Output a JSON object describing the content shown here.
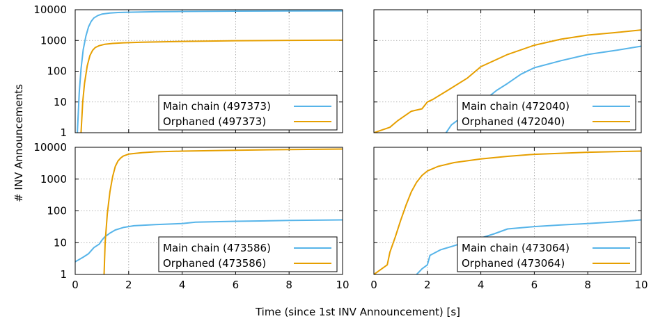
{
  "figure": {
    "ylabel": "# INV Announcements",
    "xlabel": "Time (since 1st INV Announcement) [s]"
  },
  "colors": {
    "main": "#56B4E9",
    "orphan": "#E69F00"
  },
  "chart_data": [
    {
      "type": "line",
      "xlim": [
        0,
        10
      ],
      "ylim": [
        1,
        10000
      ],
      "yscale": "log",
      "xticks": [
        "0",
        "2",
        "4",
        "6",
        "8",
        "10"
      ],
      "yticks": [
        "1",
        "10",
        "100",
        "1000",
        "10000"
      ],
      "grid": true,
      "legend": "bottom-right",
      "series": [
        {
          "name": "Main chain (497373)",
          "color": "main",
          "x": [
            0.08,
            0.15,
            0.22,
            0.3,
            0.4,
            0.5,
            0.6,
            0.7,
            0.85,
            1.0,
            1.3,
            1.6,
            2,
            3,
            4,
            6,
            8,
            10
          ],
          "y": [
            1,
            20,
            120,
            500,
            1400,
            2800,
            4200,
            5400,
            6500,
            7200,
            7800,
            8100,
            8300,
            8600,
            8800,
            9000,
            9100,
            9200
          ]
        },
        {
          "name": "Orphaned (497373)",
          "color": "orphan",
          "x": [
            0.22,
            0.28,
            0.35,
            0.45,
            0.55,
            0.65,
            0.75,
            0.9,
            1.1,
            1.4,
            1.8,
            2.5,
            4,
            6,
            8,
            10
          ],
          "y": [
            1,
            10,
            40,
            150,
            320,
            480,
            590,
            680,
            750,
            800,
            840,
            880,
            930,
            980,
            1010,
            1030
          ]
        }
      ]
    },
    {
      "type": "line",
      "xlim": [
        0,
        10
      ],
      "ylim": [
        1,
        10000
      ],
      "yscale": "log",
      "xticks": [
        "0",
        "2",
        "4",
        "6",
        "8",
        "10"
      ],
      "yticks": [
        "1",
        "10",
        "100",
        "1000",
        "10000"
      ],
      "grid": true,
      "legend": "bottom-right",
      "series": [
        {
          "name": "Main chain (472040)",
          "color": "main",
          "x": [
            2.7,
            2.9,
            3.2,
            3.6,
            3.9,
            4.3,
            4.6,
            5.0,
            5.5,
            6,
            7,
            8,
            9,
            10
          ],
          "y": [
            1,
            1.8,
            2.8,
            5,
            10,
            15,
            24,
            40,
            80,
            130,
            220,
            350,
            470,
            650
          ]
        },
        {
          "name": "Orphaned (472040)",
          "color": "orphan",
          "x": [
            0,
            0.6,
            0.9,
            1.4,
            1.8,
            2.0,
            2.2,
            2.8,
            3.5,
            4.0,
            5.0,
            6.0,
            7.0,
            8.0,
            9.0,
            10
          ],
          "y": [
            1,
            1.5,
            2.5,
            5,
            6,
            10,
            12,
            25,
            60,
            140,
            350,
            700,
            1100,
            1500,
            1800,
            2200
          ]
        }
      ]
    },
    {
      "type": "line",
      "xlim": [
        0,
        10
      ],
      "ylim": [
        1,
        10000
      ],
      "yscale": "log",
      "xticks": [
        "0",
        "2",
        "4",
        "6",
        "8",
        "10"
      ],
      "yticks": [
        "1",
        "10",
        "100",
        "1000",
        "10000"
      ],
      "grid": true,
      "legend": "bottom-right",
      "series": [
        {
          "name": "Main chain (473586)",
          "color": "main",
          "x": [
            0,
            0.3,
            0.5,
            0.7,
            0.9,
            1.0,
            1.1,
            1.3,
            1.5,
            1.8,
            2.2,
            3,
            4,
            4.5,
            6,
            8,
            10
          ],
          "y": [
            2.5,
            3.5,
            4.5,
            7,
            9,
            12,
            15,
            20,
            25,
            30,
            34,
            37,
            40,
            44,
            47,
            50,
            52
          ]
        },
        {
          "name": "Orphaned (473586)",
          "color": "orphan",
          "x": [
            1.08,
            1.12,
            1.2,
            1.3,
            1.4,
            1.5,
            1.6,
            1.7,
            1.8,
            2.0,
            2.5,
            3,
            4,
            6,
            8,
            10
          ],
          "y": [
            1,
            10,
            80,
            400,
            1200,
            2500,
            3700,
            4600,
            5300,
            6100,
            6800,
            7200,
            7600,
            8100,
            8500,
            8800
          ]
        }
      ]
    },
    {
      "type": "line",
      "xlim": [
        0,
        10
      ],
      "ylim": [
        1,
        10000
      ],
      "yscale": "log",
      "xticks": [
        "0",
        "2",
        "4",
        "6",
        "8",
        "10"
      ],
      "yticks": [
        "1",
        "10",
        "100",
        "1000",
        "10000"
      ],
      "grid": true,
      "legend": "bottom-right",
      "series": [
        {
          "name": "Main chain (473064)",
          "color": "main",
          "x": [
            1.6,
            1.8,
            2.0,
            2.1,
            2.5,
            3,
            3.5,
            4,
            4.5,
            5,
            6,
            7,
            8,
            9,
            10
          ],
          "y": [
            1,
            1.5,
            2,
            4,
            6,
            8,
            11,
            14,
            19,
            27,
            32,
            36,
            40,
            45,
            52
          ]
        },
        {
          "name": "Orphaned (473064)",
          "color": "orphan",
          "x": [
            0,
            0.5,
            0.6,
            0.8,
            1.0,
            1.2,
            1.4,
            1.6,
            1.8,
            2.0,
            2.4,
            3,
            4,
            5,
            6,
            8,
            10
          ],
          "y": [
            1,
            2,
            5,
            15,
            50,
            150,
            400,
            800,
            1300,
            1800,
            2500,
            3300,
            4300,
            5200,
            6000,
            7000,
            7600
          ]
        }
      ]
    }
  ]
}
